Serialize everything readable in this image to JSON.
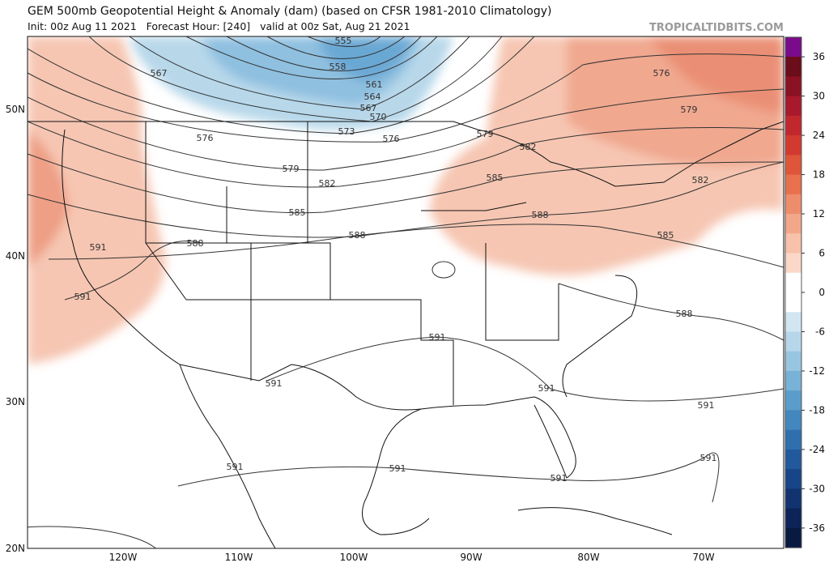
{
  "header": {
    "title": "GEM 500mb Geopotential Height & Anomaly (dam) (based on CFSR 1981-2010 Climatology)",
    "subtitle": "Init: 00z Aug 11 2021   Forecast Hour: [240]   valid at 00z Sat, Aug 21 2021",
    "watermark": "TROPICALTIDBITS.COM"
  },
  "map": {
    "latitude_labels": [
      "50N",
      "40N",
      "30N",
      "20N"
    ],
    "longitude_labels": [
      "120W",
      "110W",
      "100W",
      "90W",
      "80W",
      "70W"
    ],
    "contour_labels": [
      555,
      558,
      561,
      564,
      567,
      570,
      567,
      573,
      576,
      576,
      579,
      582,
      585,
      588,
      588,
      591,
      591,
      579,
      582,
      585,
      588,
      582,
      585,
      576,
      579,
      588,
      591,
      591,
      591,
      591,
      591,
      591,
      591,
      591
    ]
  },
  "colorbar": {
    "ticks": [
      36,
      30,
      24,
      18,
      12,
      6,
      0,
      -6,
      -12,
      -18,
      -24,
      -30,
      -36
    ]
  }
}
